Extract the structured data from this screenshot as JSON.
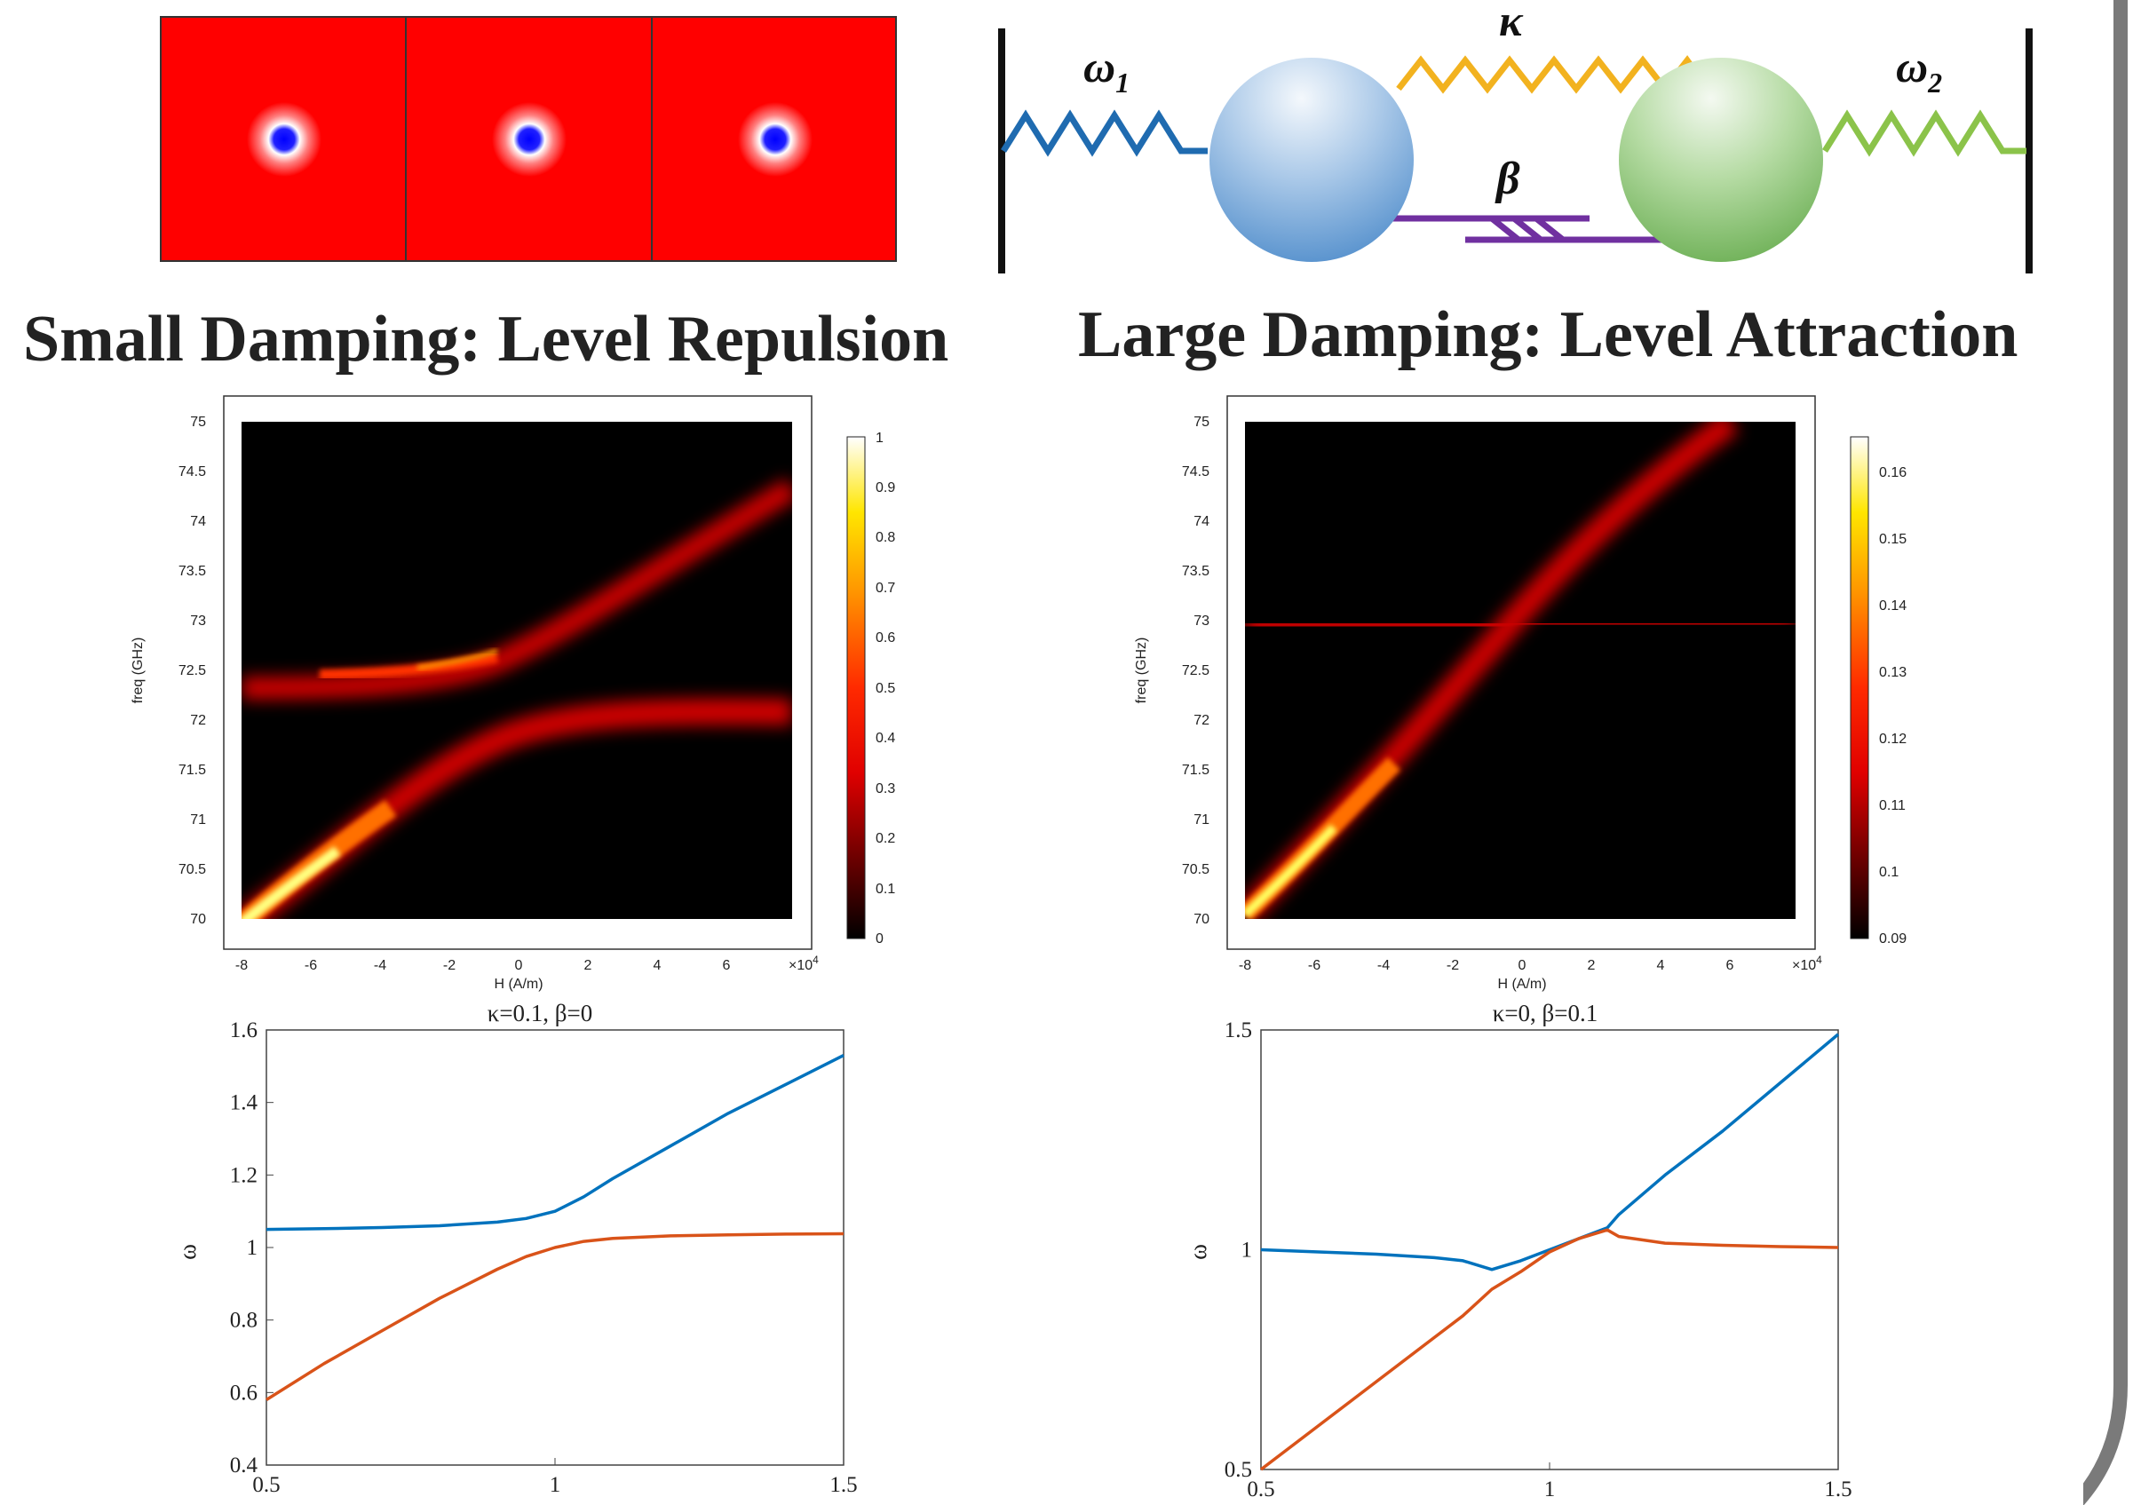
{
  "titles": {
    "left": "Small Damping: Level Repulsion",
    "right": "Large Damping: Level Attraction"
  },
  "oscillator": {
    "omega1": "ω",
    "omega1_sub": "1",
    "omega2": "ω",
    "omega2_sub": "2",
    "kappa": "κ",
    "beta": "β",
    "colors": {
      "left_spring": "#1f6bb0",
      "top_spring": "#f2b21f",
      "right_spring": "#8bc34a",
      "damper": "#7030a0",
      "left_mass": "#6fa8dc",
      "right_mass": "#8cc878"
    }
  },
  "heatmaps": [
    {
      "ylabel": "freq (GHz)",
      "xlabel": "H (A/m)",
      "x_exponent": "×10",
      "x_exponent_power": "4",
      "xticks": [
        "-8",
        "-6",
        "-4",
        "-2",
        "0",
        "2",
        "4",
        "6"
      ],
      "yticks": [
        "70",
        "70.5",
        "71",
        "71.5",
        "72",
        "72.5",
        "73",
        "73.5",
        "74",
        "74.5",
        "75"
      ],
      "colorbar_ticks": [
        "0",
        "0.1",
        "0.2",
        "0.3",
        "0.4",
        "0.5",
        "0.6",
        "0.7",
        "0.8",
        "0.9",
        "1"
      ],
      "colormap": "hot"
    },
    {
      "ylabel": "freq (GHz)",
      "xlabel": "H (A/m)",
      "x_exponent": "×10",
      "x_exponent_power": "4",
      "xticks": [
        "-8",
        "-6",
        "-4",
        "-2",
        "0",
        "2",
        "4",
        "6"
      ],
      "yticks": [
        "70",
        "70.5",
        "71",
        "71.5",
        "72",
        "72.5",
        "73",
        "73.5",
        "74",
        "74.5",
        "75"
      ],
      "colorbar_ticks": [
        "0.09",
        "0.1",
        "0.11",
        "0.12",
        "0.13",
        "0.14",
        "0.15",
        "0.16"
      ],
      "colormap": "hot"
    }
  ],
  "chart_data": [
    {
      "type": "line",
      "title": "κ=0.1, β=0",
      "ylabel": "ω",
      "xlim": [
        0.5,
        1.5
      ],
      "ylim": [
        0.4,
        1.6
      ],
      "xticks": [
        "0.5",
        "1",
        "1.5"
      ],
      "yticks": [
        "0.4",
        "0.6",
        "0.8",
        "1",
        "1.2",
        "1.4",
        "1.6"
      ],
      "series": [
        {
          "color": "#0072bd",
          "x": [
            0.5,
            0.6,
            0.7,
            0.8,
            0.9,
            0.95,
            1.0,
            1.05,
            1.1,
            1.2,
            1.3,
            1.4,
            1.5
          ],
          "y": [
            1.05,
            1.052,
            1.055,
            1.06,
            1.07,
            1.08,
            1.1,
            1.14,
            1.19,
            1.28,
            1.37,
            1.45,
            1.53
          ]
        },
        {
          "color": "#d95319",
          "x": [
            0.5,
            0.6,
            0.7,
            0.8,
            0.9,
            0.95,
            1.0,
            1.05,
            1.1,
            1.2,
            1.3,
            1.4,
            1.5
          ],
          "y": [
            0.58,
            0.68,
            0.77,
            0.86,
            0.94,
            0.975,
            1.0,
            1.017,
            1.025,
            1.032,
            1.035,
            1.037,
            1.038
          ]
        }
      ]
    },
    {
      "type": "line",
      "title": "κ=0, β=0.1",
      "ylabel": "ω",
      "xlim": [
        0.5,
        1.5
      ],
      "ylim": [
        0.5,
        1.5
      ],
      "xticks": [
        "0.5",
        "1",
        "1.5"
      ],
      "yticks": [
        "0.5",
        "1",
        "1.5"
      ],
      "series": [
        {
          "color": "#0072bd",
          "x": [
            0.5,
            0.6,
            0.7,
            0.8,
            0.85,
            0.9,
            0.95,
            1.0,
            1.05,
            1.1,
            1.12,
            1.2,
            1.3,
            1.4,
            1.5
          ],
          "y": [
            1.0,
            0.995,
            0.99,
            0.982,
            0.975,
            0.955,
            0.975,
            1.0,
            1.025,
            1.05,
            1.08,
            1.17,
            1.27,
            1.38,
            1.49
          ]
        },
        {
          "color": "#d95319",
          "x": [
            0.5,
            0.6,
            0.7,
            0.8,
            0.85,
            0.9,
            0.95,
            1.0,
            1.05,
            1.1,
            1.12,
            1.2,
            1.3,
            1.4,
            1.5
          ],
          "y": [
            0.5,
            0.6,
            0.7,
            0.8,
            0.85,
            0.91,
            0.95,
            0.995,
            1.025,
            1.045,
            1.03,
            1.015,
            1.01,
            1.007,
            1.005
          ]
        }
      ]
    }
  ]
}
